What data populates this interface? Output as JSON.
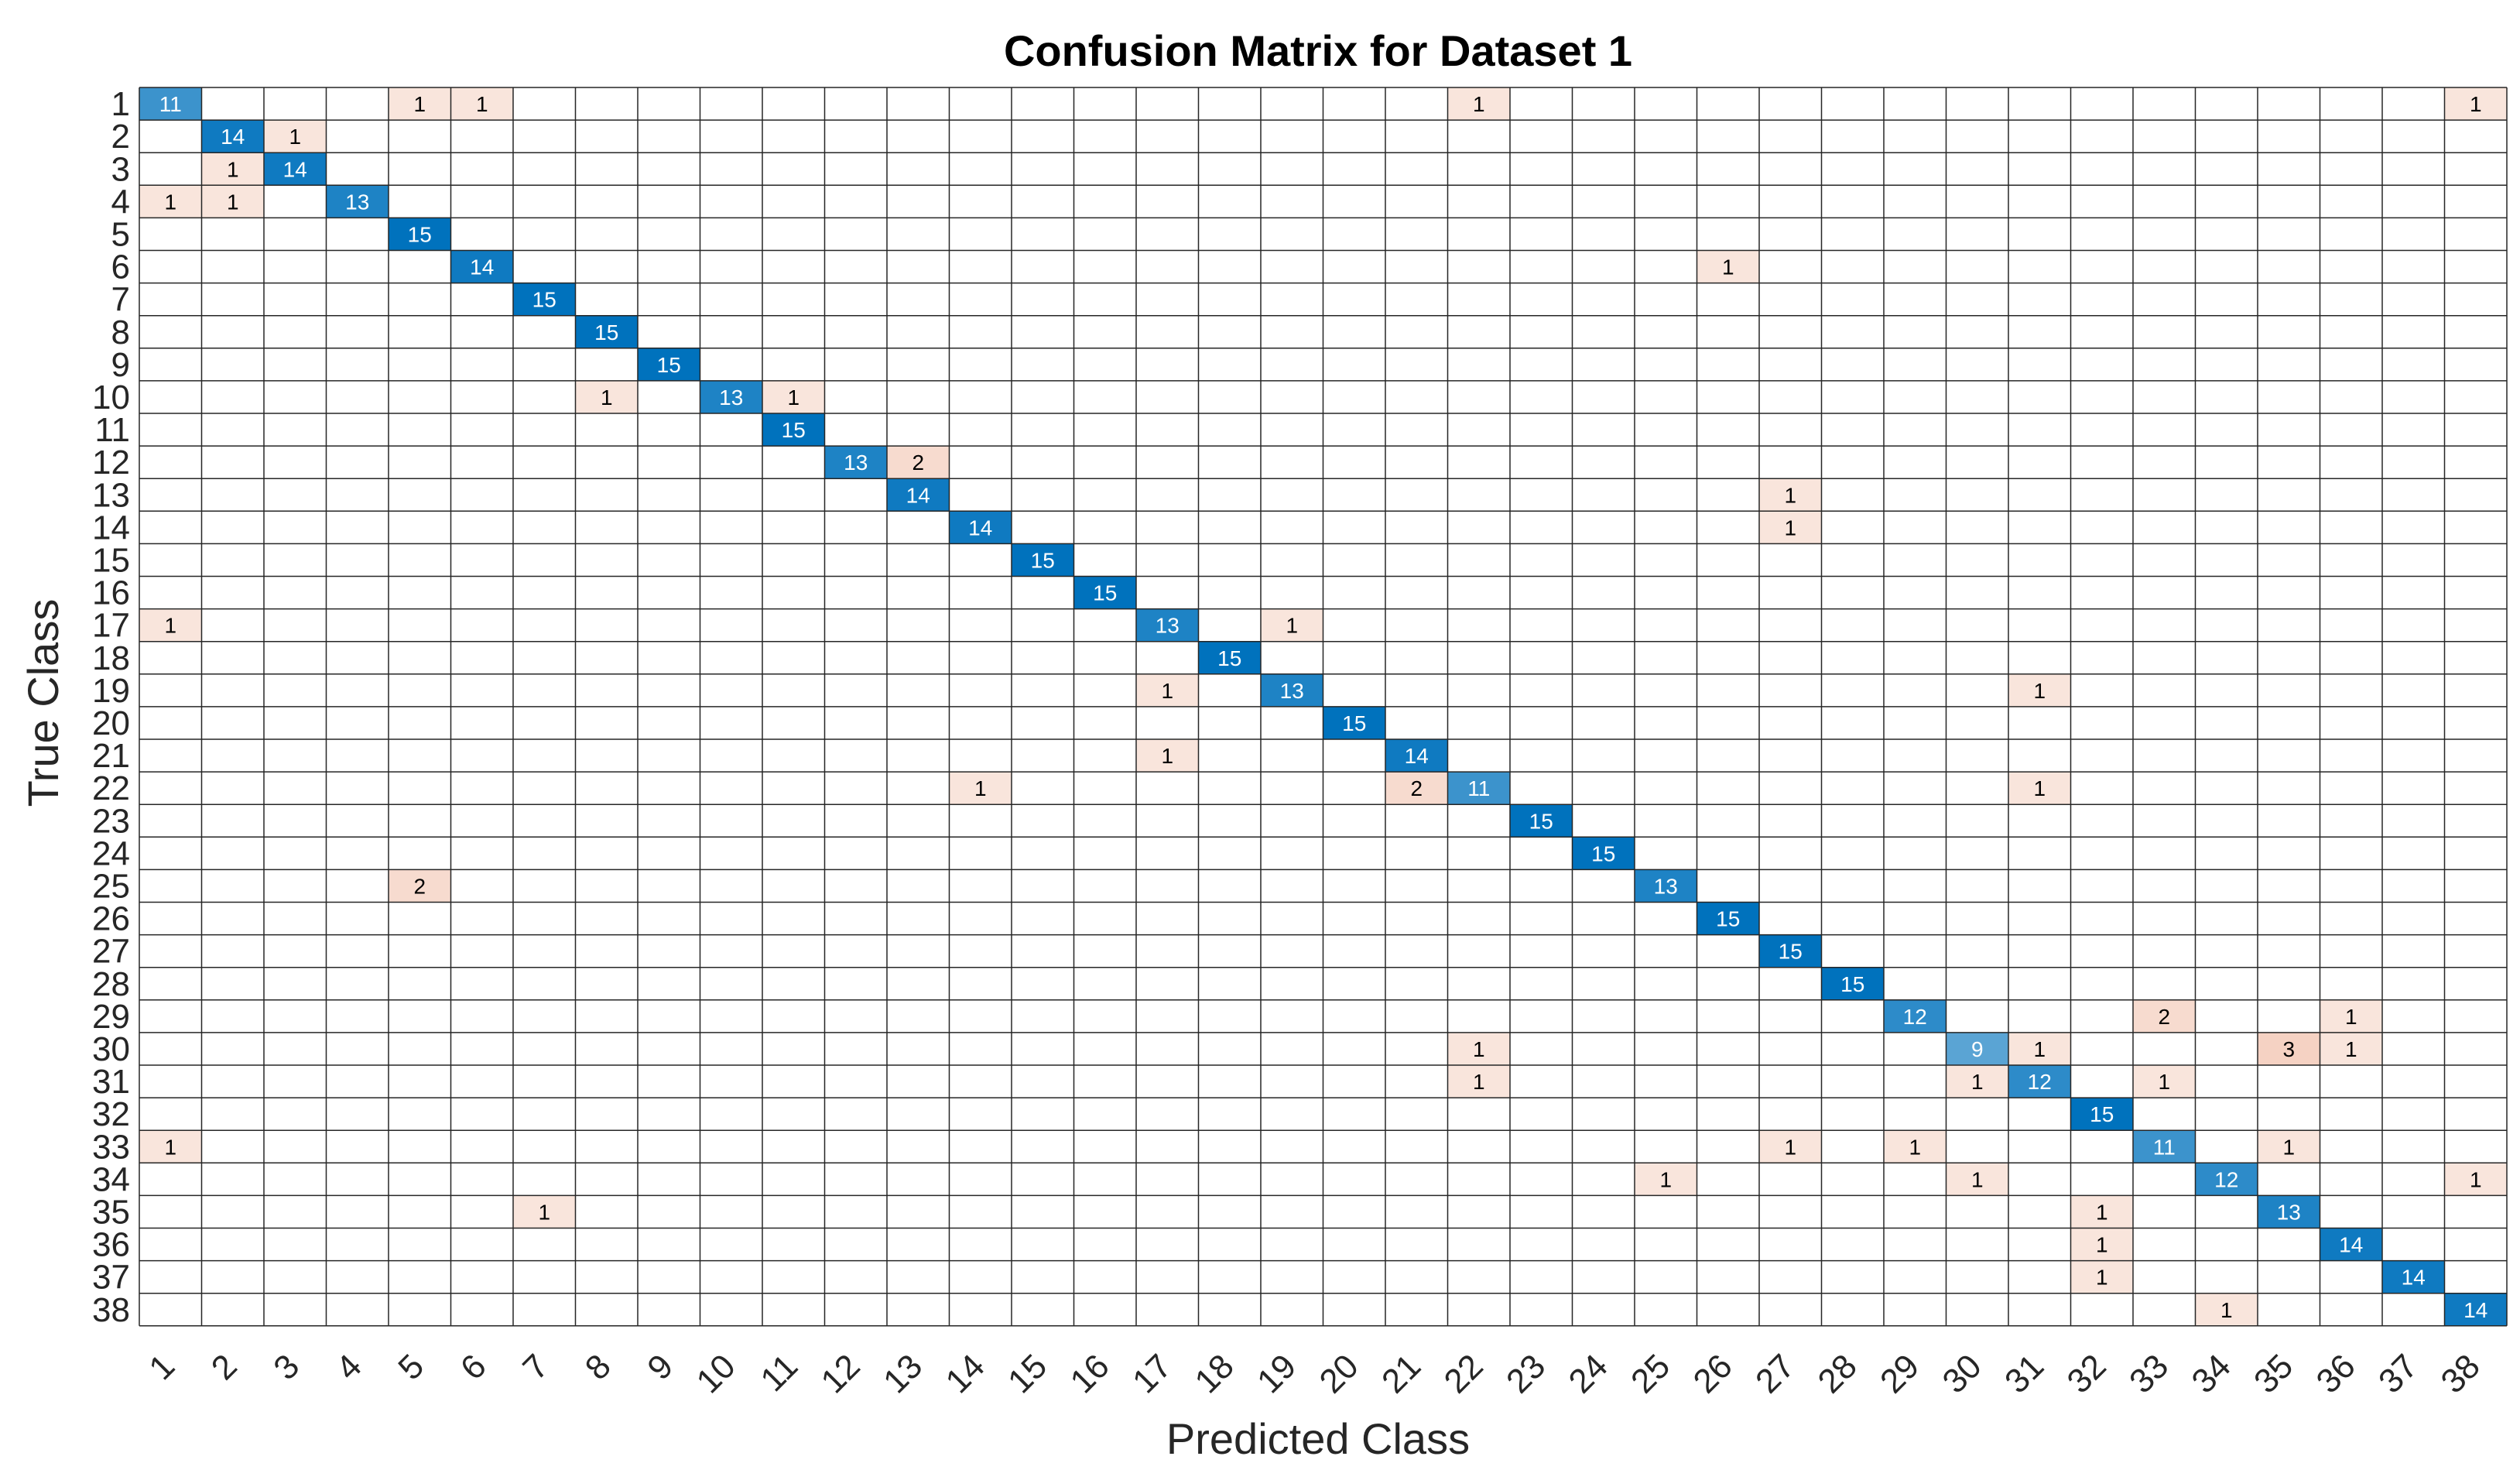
{
  "chart_data": {
    "type": "heatmap",
    "title": "Confusion Matrix for Dataset 1",
    "xlabel": "Predicted Class",
    "ylabel": "True Class",
    "labels": [
      "1",
      "2",
      "3",
      "4",
      "5",
      "6",
      "7",
      "8",
      "9",
      "10",
      "11",
      "12",
      "13",
      "14",
      "15",
      "16",
      "17",
      "18",
      "19",
      "20",
      "21",
      "22",
      "23",
      "24",
      "25",
      "26",
      "27",
      "28",
      "29",
      "30",
      "31",
      "32",
      "33",
      "34",
      "35",
      "36",
      "37",
      "38"
    ],
    "cells": [
      [
        1,
        1,
        11
      ],
      [
        1,
        5,
        1
      ],
      [
        1,
        6,
        1
      ],
      [
        1,
        22,
        1
      ],
      [
        1,
        38,
        1
      ],
      [
        2,
        2,
        14
      ],
      [
        2,
        3,
        1
      ],
      [
        3,
        2,
        1
      ],
      [
        3,
        3,
        14
      ],
      [
        4,
        1,
        1
      ],
      [
        4,
        2,
        1
      ],
      [
        4,
        4,
        13
      ],
      [
        5,
        5,
        15
      ],
      [
        6,
        6,
        14
      ],
      [
        6,
        26,
        1
      ],
      [
        7,
        7,
        15
      ],
      [
        8,
        8,
        15
      ],
      [
        9,
        9,
        15
      ],
      [
        10,
        8,
        1
      ],
      [
        10,
        10,
        13
      ],
      [
        10,
        11,
        1
      ],
      [
        11,
        11,
        15
      ],
      [
        12,
        12,
        13
      ],
      [
        12,
        13,
        2
      ],
      [
        13,
        13,
        14
      ],
      [
        13,
        27,
        1
      ],
      [
        14,
        14,
        14
      ],
      [
        14,
        27,
        1
      ],
      [
        15,
        15,
        15
      ],
      [
        16,
        16,
        15
      ],
      [
        17,
        1,
        1
      ],
      [
        17,
        17,
        13
      ],
      [
        17,
        19,
        1
      ],
      [
        18,
        18,
        15
      ],
      [
        19,
        17,
        1
      ],
      [
        19,
        19,
        13
      ],
      [
        19,
        31,
        1
      ],
      [
        20,
        20,
        15
      ],
      [
        21,
        17,
        1
      ],
      [
        21,
        21,
        14
      ],
      [
        22,
        14,
        1
      ],
      [
        22,
        21,
        2
      ],
      [
        22,
        22,
        11
      ],
      [
        22,
        31,
        1
      ],
      [
        23,
        23,
        15
      ],
      [
        24,
        24,
        15
      ],
      [
        25,
        5,
        2
      ],
      [
        25,
        25,
        13
      ],
      [
        26,
        26,
        15
      ],
      [
        27,
        27,
        15
      ],
      [
        28,
        28,
        15
      ],
      [
        29,
        29,
        12
      ],
      [
        29,
        33,
        2
      ],
      [
        29,
        36,
        1
      ],
      [
        30,
        22,
        1
      ],
      [
        30,
        30,
        9
      ],
      [
        30,
        31,
        1
      ],
      [
        30,
        35,
        3
      ],
      [
        30,
        36,
        1
      ],
      [
        31,
        22,
        1
      ],
      [
        31,
        30,
        1
      ],
      [
        31,
        31,
        12
      ],
      [
        31,
        33,
        1
      ],
      [
        32,
        32,
        15
      ],
      [
        33,
        1,
        1
      ],
      [
        33,
        27,
        1
      ],
      [
        33,
        29,
        1
      ],
      [
        33,
        33,
        11
      ],
      [
        33,
        35,
        1
      ],
      [
        34,
        25,
        1
      ],
      [
        34,
        30,
        1
      ],
      [
        34,
        34,
        12
      ],
      [
        34,
        38,
        1
      ],
      [
        35,
        7,
        1
      ],
      [
        35,
        32,
        1
      ],
      [
        35,
        35,
        13
      ],
      [
        36,
        32,
        1
      ],
      [
        36,
        36,
        14
      ],
      [
        37,
        32,
        1
      ],
      [
        37,
        37,
        14
      ],
      [
        38,
        34,
        1
      ],
      [
        38,
        38,
        14
      ]
    ],
    "colors": {
      "diag_high": "#0072BD",
      "diag_low": "#ffffff",
      "offdiag_high": "#D95319",
      "offdiag_low": "#ffffff",
      "grid": "#262626"
    }
  }
}
